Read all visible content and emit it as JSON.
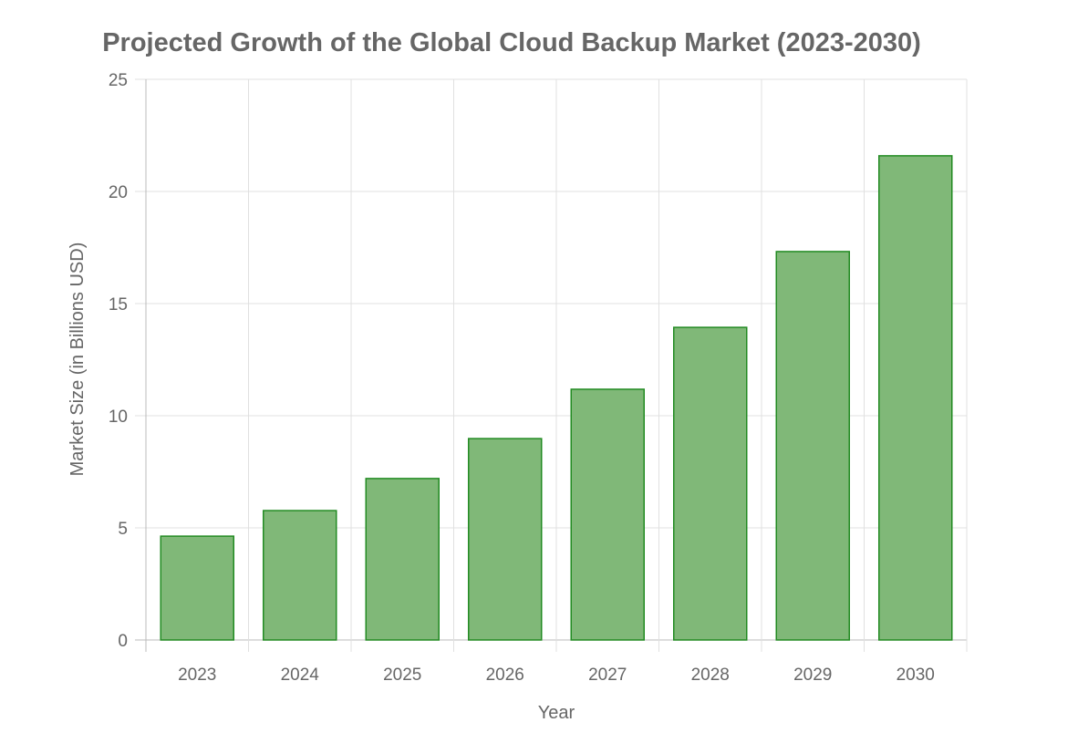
{
  "chart_data": {
    "type": "bar",
    "title": "Projected Growth of the Global Cloud Backup Market (2023-2030)",
    "xlabel": "Year",
    "ylabel": "Market Size (in Billions USD)",
    "categories": [
      "2023",
      "2024",
      "2025",
      "2026",
      "2027",
      "2028",
      "2029",
      "2030"
    ],
    "values": [
      4.63,
      5.77,
      7.2,
      8.98,
      11.18,
      13.94,
      17.32,
      21.59
    ],
    "ylim": [
      0,
      25
    ],
    "yticks": [
      "0",
      "5",
      "10",
      "15",
      "20",
      "25"
    ],
    "grid": true,
    "legend": "none",
    "colors": {
      "bar_fill": "#80b878",
      "bar_border": "#228b22",
      "text": "#666666",
      "grid": "#e0e0e0"
    }
  }
}
